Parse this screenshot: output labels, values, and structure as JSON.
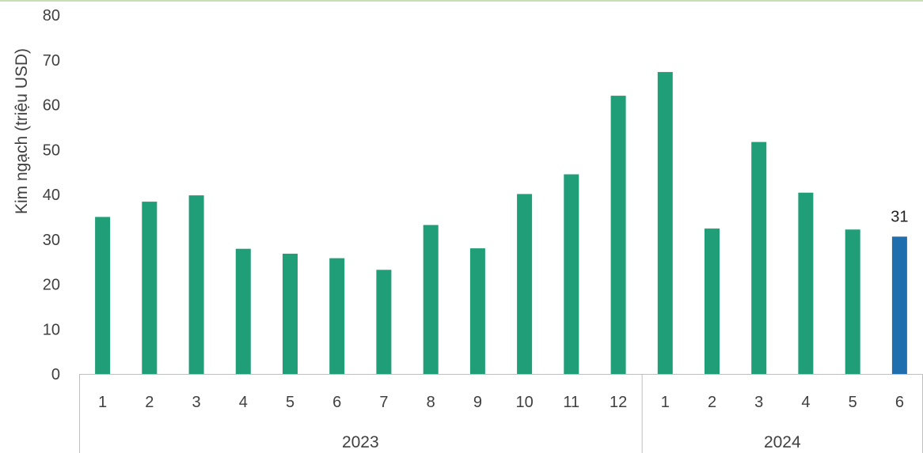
{
  "chart_data": {
    "type": "bar",
    "ylabel": "Kim ngạch (triệu USD)",
    "ylim": [
      0,
      80
    ],
    "yticks": [
      0,
      10,
      20,
      30,
      40,
      50,
      60,
      70,
      80
    ],
    "grid": false,
    "legend": "none",
    "groups": [
      {
        "label": "2023",
        "count": 12
      },
      {
        "label": "2024",
        "count": 6
      }
    ],
    "categories": [
      "1",
      "2",
      "3",
      "4",
      "5",
      "6",
      "7",
      "8",
      "9",
      "10",
      "11",
      "12",
      "1",
      "2",
      "3",
      "4",
      "5",
      "6"
    ],
    "values": [
      35.0,
      38.4,
      39.8,
      27.9,
      26.8,
      25.8,
      23.2,
      33.2,
      28.0,
      40.1,
      44.5,
      62.0,
      67.3,
      32.4,
      51.7,
      40.4,
      32.2,
      30.6
    ],
    "highlight_index": 17,
    "data_labels": [
      {
        "index": 17,
        "text": "31"
      }
    ],
    "colors": {
      "bar": "#209E77",
      "highlight": "#1F6FAE",
      "axis": "#BFBFBF",
      "top_line": "#C6E0B4"
    }
  }
}
